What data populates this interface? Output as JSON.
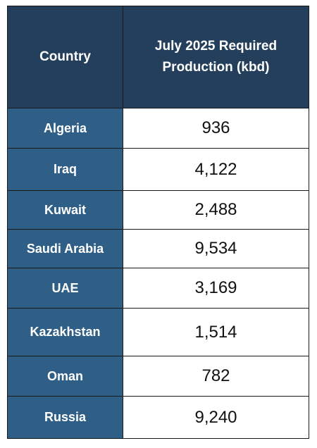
{
  "table": {
    "header": [
      "Country",
      "July 2025 Required Production (kbd)"
    ],
    "rows": [
      [
        "Algeria",
        "936"
      ],
      [
        "Iraq",
        "4,122"
      ],
      [
        "Kuwait",
        "2,488"
      ],
      [
        "Saudi Arabia",
        "9,534"
      ],
      [
        "UAE",
        "3,169"
      ],
      [
        "Kazakhstan",
        "1,514"
      ],
      [
        "Oman",
        "782"
      ],
      [
        "Russia",
        "9,240"
      ]
    ]
  }
}
